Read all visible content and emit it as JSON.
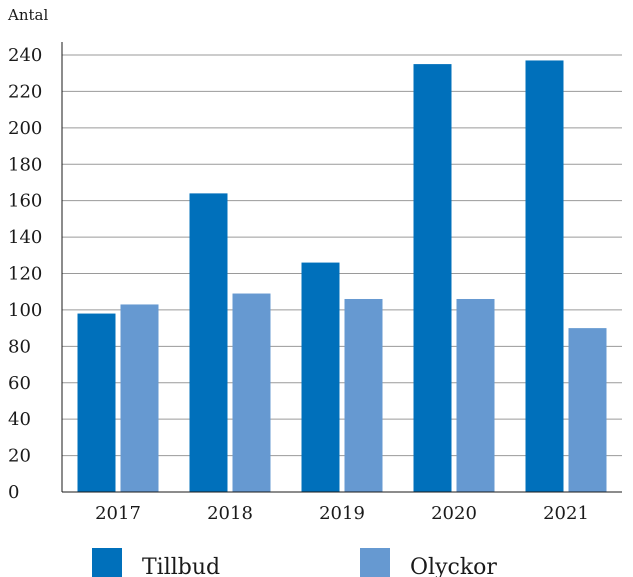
{
  "chart_data": {
    "type": "bar",
    "title": "",
    "ylabel": "Antal",
    "xlabel": "",
    "categories": [
      "2017",
      "2018",
      "2019",
      "2020",
      "2021"
    ],
    "series": [
      {
        "name": "Tillbud",
        "values": [
          98,
          164,
          126,
          235,
          237
        ],
        "color": "#0070bb"
      },
      {
        "name": "Olyckor",
        "values": [
          103,
          109,
          106,
          106,
          90
        ],
        "color": "#6699d1"
      }
    ],
    "ylim": [
      0,
      240
    ],
    "yticks": [
      "0",
      "20",
      "40",
      "60",
      "80",
      "100",
      "120",
      "140",
      "160",
      "180",
      "200",
      "220",
      "240"
    ],
    "grid": true,
    "legend": "bottom"
  }
}
